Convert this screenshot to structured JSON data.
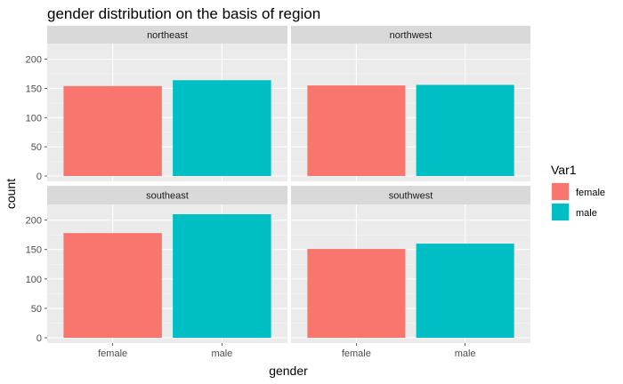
{
  "chart_data": {
    "type": "bar",
    "title": "gender distribution on the basis of region",
    "xlabel": "gender",
    "ylabel": "count",
    "categories": [
      "female",
      "male"
    ],
    "ylim": [
      0,
      210
    ],
    "y_ticks": [
      0,
      50,
      100,
      150,
      200
    ],
    "grid": true,
    "legend": {
      "title": "Var1",
      "placement": "right",
      "entries": [
        "female",
        "male"
      ]
    },
    "colors": {
      "female": "#F8766D",
      "male": "#00BFC4"
    },
    "panels": [
      {
        "name": "northeast",
        "values": [
          154,
          164
        ]
      },
      {
        "name": "northwest",
        "values": [
          155,
          156
        ]
      },
      {
        "name": "southeast",
        "values": [
          178,
          210
        ]
      },
      {
        "name": "southwest",
        "values": [
          151,
          160
        ]
      }
    ]
  }
}
